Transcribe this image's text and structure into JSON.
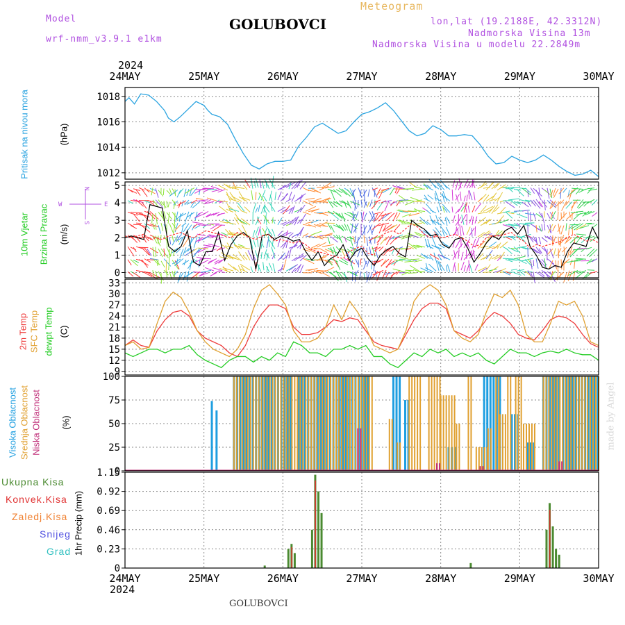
{
  "header": {
    "model_label": "Model",
    "model_value": "wrf-nmm_v3.9.1 e1km",
    "location_title": "GOLUBOVCI",
    "meteogram_label": "Meteogram",
    "lonlat": "lon,lat (19.2188E, 42.3312N)",
    "altitude": "Nadmorska Visina 13m",
    "model_altitude": "Nadmorska Visina u modelu 22.2849m"
  },
  "footer": {
    "location": "GOLUBOVCI",
    "watermark": "made by Angel"
  },
  "colors": {
    "pressure": "#29a3e0",
    "wind_speed": "#000000",
    "gust": "#ff3030",
    "t2m": "#ee3b3b",
    "tsfc": "#e0a030",
    "dewpoint": "#22cc22",
    "cloud_high": "#1e9ee0",
    "cloud_mid": "#e0a030",
    "cloud_low": "#c0307a",
    "precip_total": "#4a8a30",
    "precip_conv": "#e03030",
    "precip_frozen": "#f08030",
    "snow": "#5050e0",
    "hail": "#30c0c0",
    "accent_purple": "#b050e0"
  },
  "time_axis": {
    "year": "2024",
    "days": [
      "24MAY",
      "25MAY",
      "26MAY",
      "27MAY",
      "28MAY",
      "29MAY",
      "30MAY"
    ]
  },
  "wind_compass": {
    "n": "N",
    "s": "S",
    "e": "E",
    "w": "W"
  },
  "chart_data": [
    {
      "type": "line",
      "panel": "pressure",
      "ylabel_name": "Pritisak na nivou mora",
      "ylabel_unit": "(hPa)",
      "yticks": [
        "1018",
        "1016",
        "1014",
        "1012"
      ],
      "ylim": [
        1011.5,
        1018.7
      ],
      "x_unit": "days since 24MAY 00",
      "series": [
        {
          "x": [
            0,
            0.05,
            0.12,
            0.2,
            0.3,
            0.4,
            0.5,
            0.55,
            0.62,
            0.7,
            0.8,
            0.9,
            1.0,
            1.05,
            1.1,
            1.2,
            1.3,
            1.4,
            1.5,
            1.6,
            1.7,
            1.8,
            1.9,
            2.0,
            2.1,
            2.2,
            2.3,
            2.4,
            2.5,
            2.6,
            2.7,
            2.8,
            2.9,
            3.0,
            3.1,
            3.2,
            3.3,
            3.4,
            3.5,
            3.6,
            3.7,
            3.8,
            3.9,
            4.0,
            4.1,
            4.2,
            4.3,
            4.4,
            4.5,
            4.6,
            4.7,
            4.8,
            4.9,
            5.0,
            5.1,
            5.2,
            5.3,
            5.4,
            5.5,
            5.6,
            5.7,
            5.8,
            5.9,
            6.0
          ],
          "values": [
            1017.6,
            1017.9,
            1017.4,
            1018.2,
            1018.1,
            1017.6,
            1016.9,
            1016.3,
            1016.0,
            1016.4,
            1017.0,
            1017.6,
            1017.3,
            1016.9,
            1016.6,
            1016.4,
            1015.8,
            1014.6,
            1013.5,
            1012.6,
            1012.3,
            1012.7,
            1012.9,
            1012.9,
            1013.0,
            1014.1,
            1014.8,
            1015.6,
            1015.9,
            1015.5,
            1015.1,
            1015.3,
            1016.0,
            1016.6,
            1016.8,
            1017.1,
            1017.5,
            1016.9,
            1016.1,
            1015.3,
            1014.9,
            1015.1,
            1015.7,
            1015.4,
            1014.9,
            1014.9,
            1015.0,
            1014.9,
            1014.2,
            1013.3,
            1012.7,
            1012.8,
            1013.3,
            1013.0,
            1012.8,
            1013.0,
            1013.4,
            1013.0,
            1012.5,
            1012.1,
            1011.8,
            1011.9,
            1012.2,
            1011.7
          ]
        }
      ]
    },
    {
      "type": "line",
      "panel": "wind",
      "ylabel_name_1": "10m Vjetar",
      "ylabel_name_2": "Brzina i Pravac",
      "ylabel_unit": "(m/s)",
      "yticks": [
        "5",
        "4",
        "3",
        "2",
        "1",
        "0"
      ],
      "ylim": [
        -0.3,
        5.2
      ],
      "series": [
        {
          "name": "speed",
          "values": [
            2.0,
            2.1,
            2.0,
            1.9,
            3.9,
            3.8,
            3.7,
            1.5,
            1.2,
            1.5,
            2.4,
            0.6,
            0.4,
            1.2,
            1.2,
            2.3,
            0.7,
            1.6,
            2.1,
            2.3,
            2.0,
            0.2,
            2.1,
            2.2,
            1.9,
            2.1,
            2.0,
            1.8,
            1.9,
            1.2,
            0.7,
            1.2,
            0.4,
            0.8,
            1.0,
            1.6,
            0.7,
            1.2,
            1.4,
            0.8,
            0.4,
            1.0,
            1.3,
            1.5,
            1.1,
            0.9,
            3.0,
            2.7,
            2.5,
            2.1,
            2.2,
            1.6,
            1.4,
            1.9,
            2.0,
            1.4,
            0.6,
            1.1,
            1.7,
            2.1,
            1.9,
            2.4,
            2.6,
            2.2,
            2.7,
            1.5,
            1.0,
            0.3,
            0.2,
            0.4,
            0.3,
            1.2,
            1.7,
            1.6,
            1.5,
            2.6,
            1.9
          ]
        },
        {
          "name": "gust",
          "values": [
            2.1,
            2.0,
            2.1,
            2.2,
            1.9,
            2.0,
            1.9,
            2.1,
            2.2,
            2.3,
            2.1,
            2.0,
            2.2,
            2.4,
            2.3,
            2.2,
            2.1,
            2.0,
            2.3,
            2.2,
            2.0,
            1.9,
            2.1,
            2.2,
            1.8,
            1.9,
            1.8,
            1.7,
            1.8,
            1.6,
            1.3,
            1.2,
            1.1,
            1.0,
            0.9,
            0.8,
            1.2,
            1.4,
            1.5,
            1.1,
            1.0,
            2.1,
            2.3,
            2.4,
            2.2,
            2.5,
            2.8,
            2.6,
            2.2,
            2.0,
            2.1,
            2.0,
            2.1,
            2.2,
            2.0,
            1.8,
            1.5,
            1.6,
            2.0,
            2.1,
            2.1,
            2.2,
            2.3,
            2.0,
            1.8,
            1.4,
            1.6,
            1.5,
            1.6,
            1.7,
            1.8,
            2.0,
            2.2,
            2.0,
            1.8,
            1.9,
            1.7
          ]
        }
      ]
    },
    {
      "type": "line",
      "panel": "temperature",
      "ylabel_1": "2m Temp",
      "ylabel_2": "SFC Temp",
      "ylabel_3": "dewpt Temp",
      "ylabel_unit": "(C)",
      "yticks": [
        "33",
        "30",
        "27",
        "24",
        "21",
        "18",
        "15",
        "12",
        "9"
      ],
      "ylim": [
        8,
        34
      ],
      "series": [
        {
          "name": "2m",
          "values": [
            16,
            17.5,
            16,
            15.5,
            20,
            23,
            25,
            25.5,
            24,
            20,
            18,
            17,
            16,
            14,
            13,
            16,
            21,
            24.5,
            27,
            27,
            26,
            21,
            19,
            19,
            19.5,
            21,
            23,
            22.5,
            23.5,
            23,
            20,
            17,
            16,
            15.5,
            15,
            19,
            23,
            26,
            27.5,
            27.5,
            26,
            20,
            19,
            18,
            20,
            23,
            25,
            24,
            22,
            19,
            18,
            17.5,
            20,
            23,
            24,
            23.5,
            22,
            19,
            16.5,
            15.5
          ]
        },
        {
          "name": "sfc",
          "values": [
            16,
            17,
            15,
            15.5,
            22,
            28,
            30.5,
            29,
            25,
            20,
            17,
            15,
            14,
            13,
            15,
            19,
            26,
            31,
            32.5,
            30,
            27,
            20,
            17,
            17,
            18,
            21,
            27,
            23,
            28,
            25,
            21,
            16,
            15,
            14,
            15,
            20,
            28,
            31,
            32.5,
            31,
            27,
            20,
            18,
            17,
            19,
            25,
            30,
            29,
            31,
            27,
            19,
            17,
            17,
            22,
            28,
            27,
            28,
            24,
            17,
            16
          ]
        },
        {
          "name": "dewpt",
          "values": [
            14,
            13,
            14,
            15,
            15,
            14,
            15,
            15,
            16,
            13.5,
            12,
            11,
            10,
            12,
            13,
            13,
            11.5,
            13,
            12,
            14,
            13,
            17,
            16,
            14,
            14,
            13,
            15,
            15,
            16,
            15,
            16,
            13,
            13,
            11,
            10,
            12,
            14,
            13,
            15,
            14,
            15,
            13,
            14,
            13,
            14,
            12,
            11,
            13,
            15,
            14,
            14,
            13,
            14,
            14.5,
            14,
            15,
            14,
            13.5,
            13.5,
            12
          ]
        }
      ]
    },
    {
      "type": "bar",
      "panel": "cloud",
      "ylabel_1": "Visoka Oblacnost",
      "ylabel_2": "Srednja Oblacnost",
      "ylabel_3": "Niska Oblacnost",
      "ylabel_unit": "(%)",
      "yticks": [
        "100",
        "75",
        "50",
        "25",
        "0"
      ],
      "ylim": [
        0,
        100
      ],
      "series": [
        {
          "name": "high",
          "segments": [
            [
              1.1,
              1.12,
              74
            ],
            [
              1.16,
              1.18,
              64
            ],
            [
              1.38,
              2.1,
              100
            ],
            [
              2.2,
              3.1,
              100
            ],
            [
              3.4,
              3.5,
              100
            ],
            [
              3.55,
              3.6,
              75
            ],
            [
              4.1,
              4.2,
              25
            ],
            [
              4.55,
              4.75,
              100
            ],
            [
              4.9,
              5.0,
              60
            ],
            [
              5.1,
              5.2,
              30
            ],
            [
              5.3,
              5.5,
              100
            ],
            [
              5.55,
              6.0,
              100
            ]
          ]
        },
        {
          "name": "mid",
          "segments": [
            [
              1.38,
              3.15,
              100
            ],
            [
              3.35,
              3.4,
              55
            ],
            [
              3.45,
              3.5,
              30
            ],
            [
              3.6,
              3.75,
              100
            ],
            [
              3.85,
              4.0,
              100
            ],
            [
              4.0,
              4.2,
              80
            ],
            [
              4.2,
              4.25,
              50
            ],
            [
              4.35,
              4.4,
              100
            ],
            [
              4.45,
              4.6,
              25
            ],
            [
              4.6,
              4.65,
              45
            ],
            [
              4.7,
              4.75,
              100
            ],
            [
              4.75,
              4.85,
              60
            ],
            [
              4.85,
              4.9,
              100
            ],
            [
              4.95,
              5.05,
              100
            ],
            [
              5.05,
              5.2,
              50
            ],
            [
              5.3,
              6.0,
              100
            ]
          ]
        },
        {
          "name": "low",
          "segments": [
            [
              2.95,
              3.0,
              45
            ],
            [
              3.95,
              4.0,
              8
            ],
            [
              4.5,
              4.55,
              5
            ],
            [
              5.5,
              5.55,
              10
            ]
          ]
        }
      ]
    },
    {
      "type": "bar",
      "panel": "precip",
      "ylabel": "1hr Precip (mm)",
      "yticks": [
        "1.15",
        "0.92",
        "0.69",
        "0.46",
        "0.23",
        "0"
      ],
      "ylim": [
        0,
        1.15
      ],
      "series": [
        {
          "name": "total",
          "x": [
            1.77,
            2.07,
            2.11,
            2.15,
            2.37,
            2.41,
            2.45,
            2.49,
            4.38,
            5.34,
            5.38,
            5.42,
            5.46,
            5.5
          ],
          "values": [
            0.03,
            0.23,
            0.29,
            0.18,
            0.46,
            1.12,
            0.92,
            0.66,
            0.06,
            0.46,
            0.78,
            0.5,
            0.23,
            0.16
          ]
        },
        {
          "name": "convective",
          "x": [
            2.11,
            2.41,
            5.38
          ],
          "values": [
            0.25,
            1.05,
            0.7
          ]
        }
      ],
      "legend": [
        "Ukupna Kisa",
        "Konvek.Kisa",
        "Zaledj.Kisa",
        "Snijeg",
        "Grad"
      ]
    }
  ]
}
